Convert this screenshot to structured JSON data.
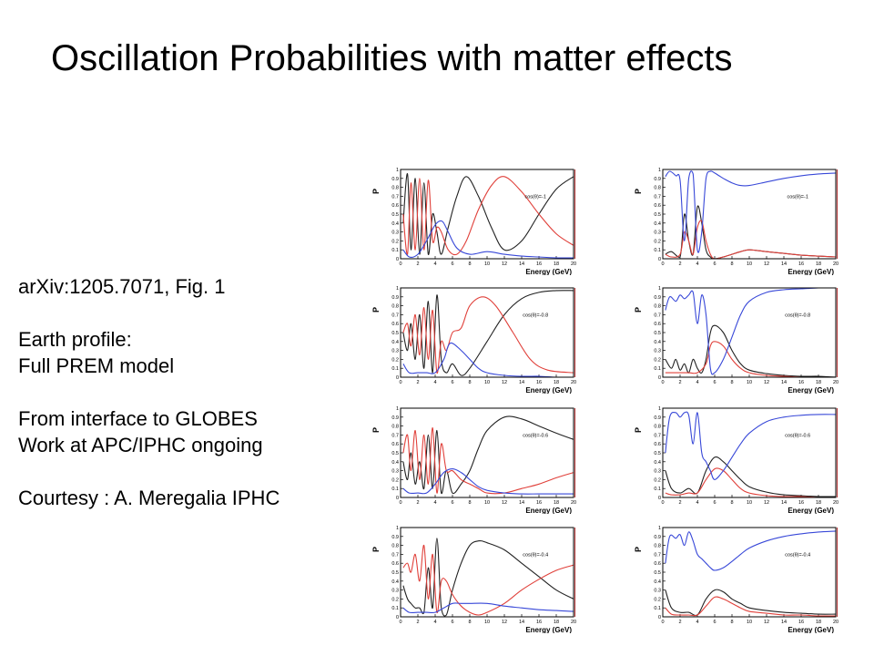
{
  "slide": {
    "title": "Oscillation Probabilities with matter effects",
    "notes": [
      "arXiv:1205.7071, Fig. 1",
      "",
      "Earth profile:",
      "Full PREM model",
      "",
      "From interface to GLOBES",
      "Work at APC/IPHC ongoing",
      "",
      "Courtesy : A. Meregalia IPHC"
    ]
  },
  "colors": {
    "black_curve": "#222222",
    "red_curve": "#e0403a",
    "blue_curve": "#3848d8",
    "frame": "#000000",
    "panel_edge": "#b03030"
  },
  "axis": {
    "xlabel": "Energy (GeV)",
    "ylabel": "P",
    "x_ticks": [
      "0",
      "2",
      "4",
      "6",
      "8",
      "10",
      "12",
      "14",
      "16",
      "18",
      "20"
    ],
    "y_ticks": [
      "0",
      "0.1",
      "0.2",
      "0.3",
      "0.4",
      "0.5",
      "0.6",
      "0.7",
      "0.8",
      "0.9",
      "1"
    ],
    "xlim": [
      0,
      20
    ],
    "ylim": [
      0,
      1
    ]
  },
  "chart_data": [
    {
      "type": "line",
      "legend": "cos(θ)=-1",
      "series": [
        {
          "name": "black",
          "x": [
            0.3,
            0.8,
            1.2,
            1.7,
            2.2,
            2.7,
            3.2,
            3.7,
            4.2,
            4.7,
            5.5,
            6.5,
            7.6,
            9,
            10.5,
            12,
            14,
            16,
            18,
            20
          ],
          "y": [
            0.4,
            0.95,
            0.1,
            0.9,
            0.05,
            0.85,
            0.05,
            0.5,
            0.3,
            0.05,
            0.35,
            0.7,
            0.92,
            0.7,
            0.35,
            0.1,
            0.2,
            0.5,
            0.78,
            0.92
          ]
        },
        {
          "name": "red",
          "x": [
            0.3,
            0.8,
            1.2,
            1.7,
            2.2,
            2.7,
            3.2,
            3.7,
            4.2,
            4.7,
            5.5,
            6.5,
            7.6,
            9,
            10.5,
            12,
            14,
            16,
            18,
            20
          ],
          "y": [
            0.5,
            0.05,
            0.85,
            0.1,
            0.9,
            0.1,
            0.88,
            0.2,
            0.35,
            0.3,
            0.1,
            0.05,
            0.2,
            0.55,
            0.82,
            0.92,
            0.75,
            0.5,
            0.28,
            0.15
          ]
        },
        {
          "name": "blue",
          "x": [
            0.3,
            1,
            2,
            3,
            4,
            4.8,
            5.5,
            6.5,
            8,
            10,
            12,
            14,
            16,
            18,
            20
          ],
          "y": [
            0.1,
            0.02,
            0.05,
            0.2,
            0.38,
            0.42,
            0.3,
            0.12,
            0.05,
            0.08,
            0.05,
            0.03,
            0.02,
            0.01,
            0.01
          ]
        }
      ]
    },
    {
      "type": "line",
      "legend": "cos(θ)=-1",
      "series": [
        {
          "name": "black",
          "x": [
            0.3,
            1,
            2,
            2.5,
            3,
            3.5,
            4,
            4.5,
            5,
            5.5,
            6,
            7,
            8,
            9,
            10,
            12,
            14,
            16,
            18,
            20
          ],
          "y": [
            0.05,
            0.08,
            0.02,
            0.5,
            0.2,
            0.05,
            0.58,
            0.4,
            0.1,
            0.02,
            0.0,
            0.02,
            0.05,
            0.08,
            0.1,
            0.08,
            0.06,
            0.04,
            0.03,
            0.02
          ]
        },
        {
          "name": "red",
          "x": [
            0.3,
            1,
            2,
            2.5,
            3,
            3.5,
            4,
            4.5,
            5,
            5.5,
            6,
            7,
            8,
            9,
            10,
            12,
            14,
            16,
            18,
            20
          ],
          "y": [
            0.05,
            0.02,
            0.05,
            0.3,
            0.2,
            0.05,
            0.35,
            0.42,
            0.2,
            0.05,
            0.0,
            0.02,
            0.05,
            0.08,
            0.1,
            0.08,
            0.06,
            0.04,
            0.03,
            0.02
          ]
        },
        {
          "name": "blue",
          "x": [
            0.3,
            0.8,
            1.5,
            2,
            2.5,
            3,
            3.5,
            4,
            4.5,
            5,
            5.5,
            6,
            6.5,
            7,
            8,
            9,
            10,
            12,
            14,
            16,
            18,
            20
          ],
          "y": [
            0.92,
            0.98,
            0.93,
            0.88,
            0.2,
            0.9,
            0.95,
            0.1,
            0.3,
            0.9,
            0.98,
            0.96,
            0.93,
            0.9,
            0.85,
            0.82,
            0.82,
            0.86,
            0.9,
            0.93,
            0.95,
            0.96
          ]
        }
      ]
    },
    {
      "type": "line",
      "legend": "cos(θ)=-0.8",
      "series": [
        {
          "name": "black",
          "x": [
            0.3,
            0.8,
            1.2,
            1.7,
            2.2,
            2.7,
            3.2,
            3.7,
            4.2,
            4.7,
            5.3,
            6,
            7,
            8,
            10,
            12,
            14,
            16,
            18,
            20
          ],
          "y": [
            0.5,
            0.3,
            0.6,
            0.2,
            0.7,
            0.1,
            0.85,
            0.05,
            0.92,
            0.2,
            0.05,
            0.15,
            0.02,
            0.1,
            0.4,
            0.7,
            0.88,
            0.95,
            0.97,
            0.97
          ]
        },
        {
          "name": "red",
          "x": [
            0.3,
            0.8,
            1.2,
            1.7,
            2.2,
            2.7,
            3.2,
            3.7,
            4.2,
            4.7,
            5.3,
            6,
            7,
            8,
            9.5,
            11,
            13,
            15,
            17,
            20
          ],
          "y": [
            0.5,
            0.6,
            0.35,
            0.7,
            0.25,
            0.78,
            0.2,
            0.75,
            0.05,
            0.4,
            0.3,
            0.5,
            0.55,
            0.8,
            0.9,
            0.8,
            0.5,
            0.2,
            0.08,
            0.05
          ]
        },
        {
          "name": "blue",
          "x": [
            0.3,
            1,
            2,
            3,
            4,
            5,
            5.5,
            6,
            7,
            8,
            9,
            10,
            12,
            14,
            16,
            18,
            20
          ],
          "y": [
            0.15,
            0.05,
            0.05,
            0.05,
            0.05,
            0.2,
            0.35,
            0.38,
            0.3,
            0.2,
            0.1,
            0.05,
            0.02,
            0.01,
            0.01,
            0.0,
            0.0
          ]
        }
      ]
    },
    {
      "type": "line",
      "legend": "cos(θ)=-0.8",
      "series": [
        {
          "name": "black",
          "x": [
            0.3,
            1,
            1.5,
            2,
            2.5,
            3,
            3.5,
            4,
            4.5,
            5,
            5.5,
            6,
            7,
            8,
            9,
            10,
            12,
            14,
            16,
            18,
            20
          ],
          "y": [
            0.2,
            0.1,
            0.2,
            0.08,
            0.15,
            0.05,
            0.2,
            0.1,
            0.05,
            0.2,
            0.5,
            0.58,
            0.5,
            0.3,
            0.15,
            0.08,
            0.04,
            0.02,
            0.01,
            0.01,
            0.0
          ]
        },
        {
          "name": "red",
          "x": [
            0.3,
            1,
            2,
            3,
            4,
            5,
            5.5,
            6,
            7,
            8,
            9,
            10,
            12,
            14,
            16,
            18,
            20
          ],
          "y": [
            0.05,
            0.05,
            0.05,
            0.05,
            0.05,
            0.15,
            0.35,
            0.4,
            0.35,
            0.2,
            0.1,
            0.05,
            0.02,
            0.01,
            0.0,
            0.0,
            0.0
          ]
        },
        {
          "name": "blue",
          "x": [
            0.3,
            0.8,
            1.5,
            2,
            2.5,
            3,
            3.5,
            4,
            4.5,
            5,
            5.5,
            6,
            7,
            8,
            9,
            10,
            12,
            14,
            16,
            18,
            20
          ],
          "y": [
            0.75,
            0.9,
            0.85,
            0.92,
            0.88,
            0.92,
            0.95,
            0.6,
            0.92,
            0.7,
            0.1,
            0.05,
            0.2,
            0.45,
            0.7,
            0.85,
            0.95,
            0.98,
            0.99,
            1.0,
            1.0
          ]
        }
      ]
    },
    {
      "type": "line",
      "legend": "cos(θ)=-0.6",
      "series": [
        {
          "name": "black",
          "x": [
            0.3,
            0.8,
            1.2,
            1.7,
            2.2,
            2.7,
            3.2,
            3.7,
            4.2,
            4.7,
            5.3,
            6,
            7,
            8,
            9,
            10,
            12,
            14,
            16,
            18,
            20
          ],
          "y": [
            0.4,
            0.2,
            0.5,
            0.15,
            0.4,
            0.1,
            0.7,
            0.1,
            0.75,
            0.05,
            0.3,
            0.05,
            0.15,
            0.3,
            0.55,
            0.75,
            0.9,
            0.88,
            0.8,
            0.72,
            0.65
          ]
        },
        {
          "name": "red",
          "x": [
            0.3,
            0.8,
            1.2,
            1.7,
            2.2,
            2.7,
            3.2,
            3.7,
            4.2,
            4.7,
            5.3,
            6,
            7,
            8,
            9,
            10,
            12,
            14,
            16,
            18,
            20
          ],
          "y": [
            0.5,
            0.7,
            0.3,
            0.75,
            0.2,
            0.7,
            0.15,
            0.78,
            0.05,
            0.6,
            0.3,
            0.3,
            0.2,
            0.15,
            0.1,
            0.05,
            0.05,
            0.1,
            0.15,
            0.22,
            0.28
          ]
        },
        {
          "name": "blue",
          "x": [
            0.3,
            1,
            2,
            3,
            4,
            5,
            6,
            7,
            8,
            9,
            10,
            12,
            14,
            16,
            18,
            20
          ],
          "y": [
            0.1,
            0.05,
            0.05,
            0.05,
            0.15,
            0.28,
            0.32,
            0.28,
            0.2,
            0.12,
            0.08,
            0.05,
            0.04,
            0.04,
            0.04,
            0.04
          ]
        }
      ]
    },
    {
      "type": "line",
      "legend": "cos(θ)=-0.6",
      "series": [
        {
          "name": "black",
          "x": [
            0.3,
            1,
            2,
            3,
            4,
            5,
            6,
            7,
            8,
            9,
            10,
            12,
            14,
            16,
            18,
            20
          ],
          "y": [
            0.3,
            0.1,
            0.05,
            0.1,
            0.05,
            0.3,
            0.45,
            0.4,
            0.3,
            0.2,
            0.12,
            0.06,
            0.03,
            0.02,
            0.01,
            0.01
          ]
        },
        {
          "name": "red",
          "x": [
            0.3,
            1,
            2,
            3,
            4,
            5,
            6,
            7,
            8,
            9,
            10,
            12,
            14,
            16,
            18,
            20
          ],
          "y": [
            0.05,
            0.03,
            0.03,
            0.05,
            0.05,
            0.2,
            0.32,
            0.3,
            0.2,
            0.1,
            0.05,
            0.02,
            0.01,
            0.01,
            0.0,
            0.0
          ]
        },
        {
          "name": "blue",
          "x": [
            0.3,
            0.8,
            1.5,
            2,
            2.5,
            3,
            3.5,
            4,
            4.5,
            5,
            5.5,
            6,
            7,
            8,
            9,
            10,
            12,
            14,
            16,
            18,
            20
          ],
          "y": [
            0.5,
            0.9,
            0.95,
            0.9,
            0.95,
            0.92,
            0.6,
            0.95,
            0.5,
            0.4,
            0.3,
            0.2,
            0.3,
            0.45,
            0.6,
            0.72,
            0.85,
            0.9,
            0.92,
            0.93,
            0.93
          ]
        }
      ]
    },
    {
      "type": "line",
      "legend": "cos(θ)=-0.4",
      "series": [
        {
          "name": "black",
          "x": [
            0.3,
            0.8,
            1.2,
            1.7,
            2.2,
            2.7,
            3.2,
            3.7,
            4.2,
            4.7,
            5.3,
            6,
            7,
            8,
            9,
            10,
            12,
            14,
            16,
            18,
            20
          ],
          "y": [
            0.35,
            0.2,
            0.15,
            0.1,
            0.1,
            0.05,
            0.55,
            0.1,
            0.88,
            0.1,
            0.02,
            0.3,
            0.6,
            0.8,
            0.85,
            0.83,
            0.75,
            0.6,
            0.45,
            0.3,
            0.2
          ]
        },
        {
          "name": "red",
          "x": [
            0.3,
            0.8,
            1.2,
            1.7,
            2.2,
            2.7,
            3.2,
            3.7,
            4.2,
            4.7,
            5.3,
            6,
            7,
            8,
            9,
            10,
            12,
            14,
            16,
            18,
            20
          ],
          "y": [
            0.55,
            0.6,
            0.5,
            0.7,
            0.4,
            0.8,
            0.2,
            0.7,
            0.05,
            0.4,
            0.4,
            0.25,
            0.12,
            0.05,
            0.02,
            0.05,
            0.15,
            0.3,
            0.42,
            0.52,
            0.58
          ]
        },
        {
          "name": "blue",
          "x": [
            0.3,
            1,
            2,
            3,
            4,
            5,
            6,
            7,
            8,
            10,
            12,
            14,
            16,
            18,
            20
          ],
          "y": [
            0.1,
            0.05,
            0.05,
            0.05,
            0.05,
            0.1,
            0.15,
            0.15,
            0.15,
            0.15,
            0.12,
            0.1,
            0.08,
            0.07,
            0.06
          ]
        }
      ]
    },
    {
      "type": "line",
      "legend": "cos(θ)=-0.4",
      "series": [
        {
          "name": "black",
          "x": [
            0.3,
            1,
            2,
            3,
            4,
            5,
            6,
            7,
            8,
            9,
            10,
            12,
            14,
            16,
            18,
            20
          ],
          "y": [
            0.3,
            0.1,
            0.05,
            0.05,
            0.02,
            0.2,
            0.3,
            0.28,
            0.2,
            0.15,
            0.1,
            0.07,
            0.05,
            0.04,
            0.03,
            0.03
          ]
        },
        {
          "name": "red",
          "x": [
            0.3,
            1,
            2,
            3,
            4,
            5,
            6,
            7,
            8,
            9,
            10,
            12,
            14,
            16,
            18,
            20
          ],
          "y": [
            0.1,
            0.03,
            0.02,
            0.02,
            0.02,
            0.12,
            0.22,
            0.2,
            0.15,
            0.1,
            0.06,
            0.04,
            0.02,
            0.02,
            0.01,
            0.01
          ]
        },
        {
          "name": "blue",
          "x": [
            0.3,
            0.8,
            1.5,
            2,
            2.5,
            3,
            3.5,
            4,
            4.5,
            5,
            5.5,
            6,
            7,
            8,
            9,
            10,
            12,
            14,
            16,
            18,
            20
          ],
          "y": [
            0.6,
            0.9,
            0.88,
            0.92,
            0.8,
            0.95,
            0.85,
            0.7,
            0.65,
            0.6,
            0.55,
            0.52,
            0.55,
            0.62,
            0.7,
            0.77,
            0.85,
            0.9,
            0.93,
            0.95,
            0.96
          ]
        }
      ]
    }
  ]
}
